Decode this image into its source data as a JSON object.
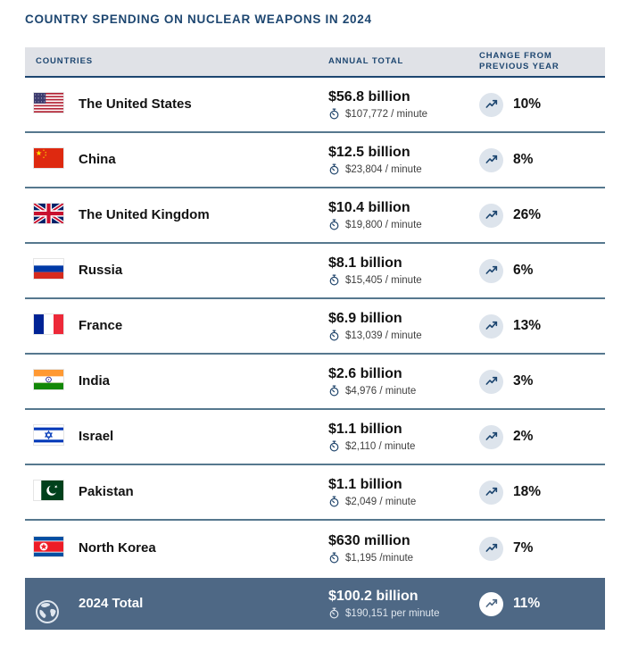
{
  "page": {
    "title": "COUNTRY SPENDING ON NUCLEAR WEAPONS IN 2024"
  },
  "table": {
    "headers": {
      "countries": "COUNTRIES",
      "annual_total": "ANNUAL TOTAL",
      "change": "CHANGE FROM PREVIOUS YEAR"
    },
    "rows": [
      {
        "country": "The United States",
        "flag": "us",
        "flag_icon": "us-flag-icon",
        "annual_total": "$56.8 billion",
        "per_minute": "$107,772 / minute",
        "change": "10%"
      },
      {
        "country": "China",
        "flag": "cn",
        "flag_icon": "china-flag-icon",
        "annual_total": "$12.5 billion",
        "per_minute": "$23,804 / minute",
        "change": "8%"
      },
      {
        "country": "The United Kingdom",
        "flag": "uk",
        "flag_icon": "uk-flag-icon",
        "annual_total": "$10.4 billion",
        "per_minute": "$19,800 / minute",
        "change": "26%"
      },
      {
        "country": "Russia",
        "flag": "ru",
        "flag_icon": "russia-flag-icon",
        "annual_total": "$8.1 billion",
        "per_minute": "$15,405 / minute",
        "change": "6%"
      },
      {
        "country": "France",
        "flag": "fr",
        "flag_icon": "france-flag-icon",
        "annual_total": "$6.9 billion",
        "per_minute": "$13,039 / minute",
        "change": "13%"
      },
      {
        "country": "India",
        "flag": "in",
        "flag_icon": "india-flag-icon",
        "annual_total": "$2.6 billion",
        "per_minute": "$4,976 / minute",
        "change": "3%"
      },
      {
        "country": "Israel",
        "flag": "il",
        "flag_icon": "israel-flag-icon",
        "annual_total": "$1.1 billion",
        "per_minute": "$2,110 / minute",
        "change": "2%"
      },
      {
        "country": "Pakistan",
        "flag": "pk",
        "flag_icon": "pakistan-flag-icon",
        "annual_total": "$1.1 billion",
        "per_minute": "$2,049 / minute",
        "change": "18%"
      },
      {
        "country": "North Korea",
        "flag": "kp",
        "flag_icon": "north-korea-flag-icon",
        "annual_total": "$630 million",
        "per_minute": "$1,195 /minute",
        "change": "7%"
      }
    ],
    "total_row": {
      "label": "2024 Total",
      "icon": "globe-icon",
      "annual_total": "$100.2 billion",
      "per_minute": "$190,151 per minute",
      "change": "11%"
    }
  },
  "icons": {
    "per_minute": "stopwatch-icon",
    "change": "trend-up-icon",
    "total": "globe-icon"
  },
  "colors": {
    "accent_navy": "#1d4670",
    "header_bg": "#e0e2e7",
    "row_divider": "#56788e",
    "total_row_bg": "#4e6885",
    "trend_circle_bg": "#dde4ec",
    "text_dark": "#121212"
  },
  "chart_data": {
    "type": "table",
    "title": "COUNTRY SPENDING ON NUCLEAR WEAPONS IN 2024",
    "columns": [
      "Country",
      "Annual Total",
      "Per Minute",
      "Change From Previous Year"
    ],
    "rows": [
      [
        "The United States",
        "$56.8 billion",
        "$107,772 / minute",
        "10%"
      ],
      [
        "China",
        "$12.5 billion",
        "$23,804 / minute",
        "8%"
      ],
      [
        "The United Kingdom",
        "$10.4 billion",
        "$19,800 / minute",
        "26%"
      ],
      [
        "Russia",
        "$8.1 billion",
        "$15,405 / minute",
        "6%"
      ],
      [
        "France",
        "$6.9 billion",
        "$13,039 / minute",
        "13%"
      ],
      [
        "India",
        "$2.6 billion",
        "$4,976 / minute",
        "3%"
      ],
      [
        "Israel",
        "$1.1 billion",
        "$2,110 / minute",
        "2%"
      ],
      [
        "Pakistan",
        "$1.1 billion",
        "$2,049 / minute",
        "18%"
      ],
      [
        "North Korea",
        "$630 million",
        "$1,195 /minute",
        "7%"
      ]
    ],
    "total": [
      "2024 Total",
      "$100.2 billion",
      "$190,151 per minute",
      "11%"
    ],
    "annual_total_billions": [
      56.8,
      12.5,
      10.4,
      8.1,
      6.9,
      2.6,
      1.1,
      1.1,
      0.63
    ],
    "change_percent": [
      10,
      8,
      26,
      6,
      13,
      3,
      2,
      18,
      7
    ],
    "total_billions": 100.2,
    "total_change_percent": 11
  }
}
